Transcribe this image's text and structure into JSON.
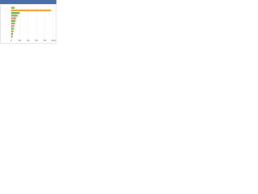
{
  "chart_data": {
    "type": "hbar",
    "values": [
      8,
      95,
      20,
      15,
      12,
      10,
      9,
      7,
      6,
      5,
      4,
      3
    ],
    "colors": [
      "#7ab648",
      "#f0a030",
      "#7ab648",
      "#7ab648",
      "#e07aa0",
      "#7ab648",
      "#7ab648",
      "#e07aa0",
      "#7ab648",
      "#7ab648",
      "#e07aa0",
      "#7ab648"
    ],
    "xlim": [
      0,
      100
    ],
    "xticks": [
      0,
      20,
      40,
      60,
      80,
      100
    ],
    "grid": true
  }
}
